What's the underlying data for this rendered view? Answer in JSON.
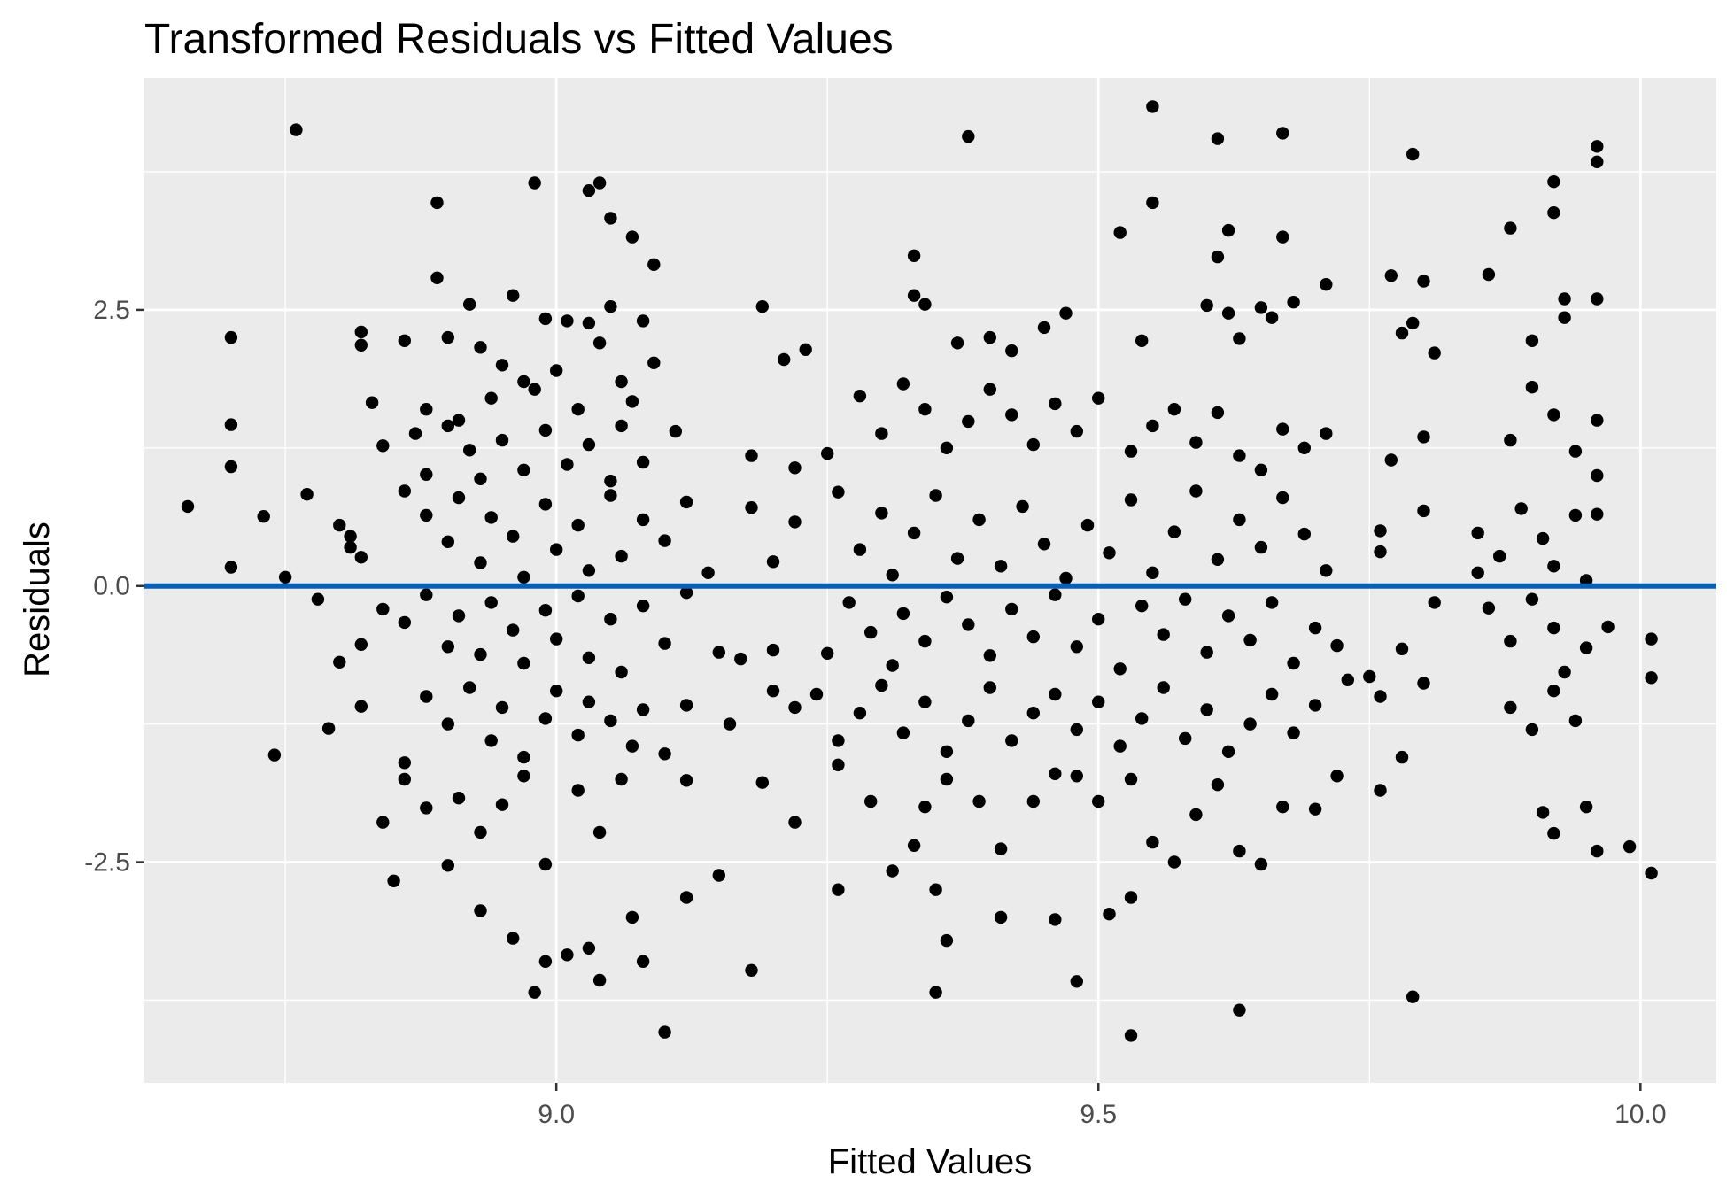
{
  "chart_data": {
    "type": "scatter",
    "title": "Transformed Residuals vs Fitted Values",
    "xlabel": "Fitted Values",
    "ylabel": "Residuals",
    "xlim": [
      8.62,
      10.07
    ],
    "ylim": [
      -4.5,
      4.6
    ],
    "x_ticks": [
      9.0,
      9.5,
      10.0
    ],
    "x_tick_labels": [
      "9.0",
      "9.5",
      "10.0"
    ],
    "y_ticks": [
      -2.5,
      0.0,
      2.5
    ],
    "y_tick_labels": [
      "-2.5",
      "0.0",
      "2.5"
    ],
    "grid": true,
    "legend": "none",
    "reference_line": {
      "y": 0.0,
      "color": "#0a5fb4"
    },
    "colors": {
      "panel_background": "#ebebeb",
      "grid": "#ffffff",
      "points": "#000000"
    },
    "points": [
      [
        8.76,
        4.13
      ],
      [
        8.89,
        3.47
      ],
      [
        8.98,
        3.65
      ],
      [
        9.03,
        3.58
      ],
      [
        9.04,
        3.65
      ],
      [
        9.05,
        3.33
      ],
      [
        9.07,
        3.16
      ],
      [
        9.09,
        2.91
      ],
      [
        9.38,
        4.07
      ],
      [
        9.55,
        4.34
      ],
      [
        9.55,
        3.47
      ],
      [
        9.61,
        4.05
      ],
      [
        9.67,
        4.1
      ],
      [
        9.52,
        3.2
      ],
      [
        9.62,
        3.22
      ],
      [
        9.67,
        3.16
      ],
      [
        9.79,
        3.91
      ],
      [
        9.96,
        3.98
      ],
      [
        9.96,
        3.84
      ],
      [
        9.92,
        3.66
      ],
      [
        9.92,
        3.38
      ],
      [
        9.88,
        3.24
      ],
      [
        9.33,
        2.99
      ],
      [
        9.61,
        2.98
      ],
      [
        8.7,
        2.25
      ],
      [
        8.7,
        1.46
      ],
      [
        8.7,
        1.08
      ],
      [
        8.7,
        0.17
      ],
      [
        8.66,
        0.72
      ],
      [
        8.73,
        0.63
      ],
      [
        8.75,
        0.08
      ],
      [
        8.77,
        0.83
      ],
      [
        8.8,
        0.55
      ],
      [
        8.81,
        0.45
      ],
      [
        8.81,
        0.35
      ],
      [
        8.82,
        0.26
      ],
      [
        8.82,
        2.3
      ],
      [
        8.82,
        2.18
      ],
      [
        8.83,
        1.66
      ],
      [
        8.84,
        1.27
      ],
      [
        8.86,
        2.22
      ],
      [
        8.87,
        1.38
      ],
      [
        8.88,
        1.01
      ],
      [
        8.9,
        2.25
      ],
      [
        8.91,
        1.5
      ],
      [
        8.92,
        2.55
      ],
      [
        8.89,
        2.79
      ],
      [
        8.93,
        2.16
      ],
      [
        8.94,
        1.7
      ],
      [
        8.95,
        2.0
      ],
      [
        8.96,
        2.63
      ],
      [
        8.97,
        1.85
      ],
      [
        8.98,
        1.78
      ],
      [
        8.99,
        2.42
      ],
      [
        9.0,
        1.95
      ],
      [
        9.01,
        2.4
      ],
      [
        9.02,
        1.6
      ],
      [
        9.03,
        2.38
      ],
      [
        9.04,
        2.2
      ],
      [
        9.05,
        2.53
      ],
      [
        9.06,
        1.85
      ],
      [
        9.07,
        1.67
      ],
      [
        9.08,
        2.4
      ],
      [
        9.09,
        2.02
      ],
      [
        9.19,
        2.53
      ],
      [
        9.21,
        2.05
      ],
      [
        9.23,
        2.14
      ],
      [
        9.33,
        2.63
      ],
      [
        9.34,
        2.55
      ],
      [
        9.37,
        2.2
      ],
      [
        9.4,
        2.25
      ],
      [
        9.42,
        2.13
      ],
      [
        9.45,
        2.34
      ],
      [
        9.47,
        2.47
      ],
      [
        9.54,
        2.22
      ],
      [
        9.6,
        2.54
      ],
      [
        9.62,
        2.47
      ],
      [
        9.63,
        2.24
      ],
      [
        9.65,
        2.52
      ],
      [
        9.66,
        2.43
      ],
      [
        9.68,
        2.57
      ],
      [
        9.71,
        2.73
      ],
      [
        9.77,
        2.81
      ],
      [
        9.78,
        2.29
      ],
      [
        9.79,
        2.38
      ],
      [
        9.8,
        2.76
      ],
      [
        9.81,
        2.11
      ],
      [
        9.86,
        2.82
      ],
      [
        9.9,
        2.22
      ],
      [
        9.93,
        2.6
      ],
      [
        9.96,
        2.6
      ],
      [
        9.93,
        2.43
      ],
      [
        8.88,
        1.6
      ],
      [
        8.9,
        1.45
      ],
      [
        8.92,
        1.23
      ],
      [
        8.93,
        0.97
      ],
      [
        8.95,
        1.32
      ],
      [
        8.97,
        1.05
      ],
      [
        8.99,
        1.41
      ],
      [
        9.01,
        1.1
      ],
      [
        9.03,
        1.28
      ],
      [
        9.05,
        0.95
      ],
      [
        9.06,
        1.45
      ],
      [
        9.08,
        1.12
      ],
      [
        9.11,
        1.4
      ],
      [
        9.18,
        1.18
      ],
      [
        9.22,
        1.07
      ],
      [
        9.25,
        1.2
      ],
      [
        9.28,
        1.72
      ],
      [
        9.3,
        1.38
      ],
      [
        9.32,
        1.83
      ],
      [
        9.34,
        1.6
      ],
      [
        9.36,
        1.25
      ],
      [
        9.38,
        1.49
      ],
      [
        9.4,
        1.78
      ],
      [
        9.42,
        1.55
      ],
      [
        9.44,
        1.28
      ],
      [
        9.46,
        1.65
      ],
      [
        9.48,
        1.4
      ],
      [
        9.5,
        1.7
      ],
      [
        9.53,
        1.22
      ],
      [
        9.55,
        1.45
      ],
      [
        9.57,
        1.6
      ],
      [
        9.59,
        1.3
      ],
      [
        9.61,
        1.57
      ],
      [
        9.63,
        1.18
      ],
      [
        9.65,
        1.05
      ],
      [
        9.67,
        1.42
      ],
      [
        9.69,
        1.25
      ],
      [
        9.71,
        1.38
      ],
      [
        9.77,
        1.14
      ],
      [
        9.8,
        1.35
      ],
      [
        9.88,
        1.32
      ],
      [
        9.9,
        1.8
      ],
      [
        9.92,
        1.55
      ],
      [
        9.94,
        1.22
      ],
      [
        9.96,
        1.5
      ],
      [
        9.96,
        1.0
      ],
      [
        8.86,
        0.86
      ],
      [
        8.88,
        0.64
      ],
      [
        8.9,
        0.4
      ],
      [
        8.91,
        0.8
      ],
      [
        8.93,
        0.21
      ],
      [
        8.94,
        0.62
      ],
      [
        8.96,
        0.45
      ],
      [
        8.97,
        0.08
      ],
      [
        8.99,
        0.74
      ],
      [
        9.0,
        0.33
      ],
      [
        9.02,
        0.55
      ],
      [
        9.03,
        0.14
      ],
      [
        9.05,
        0.82
      ],
      [
        9.06,
        0.27
      ],
      [
        9.08,
        0.6
      ],
      [
        9.1,
        0.41
      ],
      [
        9.12,
        0.76
      ],
      [
        9.14,
        0.12
      ],
      [
        9.18,
        0.71
      ],
      [
        9.2,
        0.22
      ],
      [
        9.22,
        0.58
      ],
      [
        9.26,
        0.85
      ],
      [
        9.28,
        0.33
      ],
      [
        9.3,
        0.66
      ],
      [
        9.31,
        0.1
      ],
      [
        9.33,
        0.48
      ],
      [
        9.35,
        0.82
      ],
      [
        9.37,
        0.25
      ],
      [
        9.39,
        0.6
      ],
      [
        9.41,
        0.18
      ],
      [
        9.43,
        0.72
      ],
      [
        9.45,
        0.38
      ],
      [
        9.47,
        0.07
      ],
      [
        9.49,
        0.55
      ],
      [
        9.51,
        0.3
      ],
      [
        9.53,
        0.78
      ],
      [
        9.55,
        0.12
      ],
      [
        9.57,
        0.49
      ],
      [
        9.59,
        0.86
      ],
      [
        9.61,
        0.24
      ],
      [
        9.63,
        0.6
      ],
      [
        9.65,
        0.35
      ],
      [
        9.67,
        0.8
      ],
      [
        9.69,
        0.47
      ],
      [
        9.71,
        0.14
      ],
      [
        9.76,
        0.5
      ],
      [
        9.76,
        0.31
      ],
      [
        9.8,
        0.68
      ],
      [
        9.85,
        0.48
      ],
      [
        9.85,
        0.12
      ],
      [
        9.87,
        0.27
      ],
      [
        9.89,
        0.7
      ],
      [
        9.91,
        0.43
      ],
      [
        9.92,
        0.18
      ],
      [
        9.94,
        0.64
      ],
      [
        9.95,
        0.05
      ],
      [
        9.96,
        0.65
      ],
      [
        8.78,
        -0.12
      ],
      [
        8.8,
        -0.69
      ],
      [
        8.82,
        -0.53
      ],
      [
        8.84,
        -0.21
      ],
      [
        8.86,
        -0.33
      ],
      [
        8.88,
        -0.08
      ],
      [
        8.9,
        -0.55
      ],
      [
        8.91,
        -0.27
      ],
      [
        8.93,
        -0.62
      ],
      [
        8.94,
        -0.15
      ],
      [
        8.96,
        -0.4
      ],
      [
        8.97,
        -0.7
      ],
      [
        8.99,
        -0.22
      ],
      [
        9.0,
        -0.48
      ],
      [
        9.02,
        -0.09
      ],
      [
        9.03,
        -0.65
      ],
      [
        9.05,
        -0.3
      ],
      [
        9.06,
        -0.78
      ],
      [
        9.08,
        -0.18
      ],
      [
        9.1,
        -0.52
      ],
      [
        9.12,
        -0.06
      ],
      [
        9.15,
        -0.6
      ],
      [
        9.17,
        -0.66
      ],
      [
        9.2,
        -0.58
      ],
      [
        9.25,
        -0.61
      ],
      [
        9.27,
        -0.15
      ],
      [
        9.29,
        -0.42
      ],
      [
        9.31,
        -0.72
      ],
      [
        9.32,
        -0.25
      ],
      [
        9.34,
        -0.5
      ],
      [
        9.36,
        -0.1
      ],
      [
        9.38,
        -0.35
      ],
      [
        9.4,
        -0.63
      ],
      [
        9.42,
        -0.21
      ],
      [
        9.44,
        -0.46
      ],
      [
        9.46,
        -0.08
      ],
      [
        9.48,
        -0.55
      ],
      [
        9.5,
        -0.3
      ],
      [
        9.52,
        -0.75
      ],
      [
        9.54,
        -0.18
      ],
      [
        9.56,
        -0.44
      ],
      [
        9.58,
        -0.12
      ],
      [
        9.6,
        -0.6
      ],
      [
        9.62,
        -0.27
      ],
      [
        9.64,
        -0.49
      ],
      [
        9.66,
        -0.15
      ],
      [
        9.68,
        -0.7
      ],
      [
        9.7,
        -0.38
      ],
      [
        9.72,
        -0.54
      ],
      [
        9.75,
        -0.82
      ],
      [
        9.78,
        -0.57
      ],
      [
        9.81,
        -0.15
      ],
      [
        9.86,
        -0.2
      ],
      [
        9.88,
        -0.5
      ],
      [
        9.9,
        -0.12
      ],
      [
        9.92,
        -0.38
      ],
      [
        9.93,
        -0.78
      ],
      [
        9.95,
        -0.56
      ],
      [
        9.97,
        -0.37
      ],
      [
        10.01,
        -0.48
      ],
      [
        8.74,
        -1.53
      ],
      [
        8.79,
        -1.29
      ],
      [
        8.82,
        -1.09
      ],
      [
        8.86,
        -1.6
      ],
      [
        8.88,
        -1.0
      ],
      [
        8.9,
        -1.25
      ],
      [
        8.92,
        -0.92
      ],
      [
        8.94,
        -1.4
      ],
      [
        8.95,
        -1.1
      ],
      [
        8.97,
        -1.55
      ],
      [
        8.99,
        -1.2
      ],
      [
        9.0,
        -0.95
      ],
      [
        9.02,
        -1.35
      ],
      [
        9.03,
        -1.05
      ],
      [
        9.05,
        -1.22
      ],
      [
        9.07,
        -1.45
      ],
      [
        9.08,
        -1.12
      ],
      [
        9.1,
        -1.52
      ],
      [
        9.12,
        -1.08
      ],
      [
        9.16,
        -1.25
      ],
      [
        9.2,
        -0.95
      ],
      [
        9.22,
        -1.1
      ],
      [
        9.24,
        -0.98
      ],
      [
        9.26,
        -1.4
      ],
      [
        9.28,
        -1.15
      ],
      [
        9.3,
        -0.9
      ],
      [
        9.32,
        -1.33
      ],
      [
        9.34,
        -1.05
      ],
      [
        9.36,
        -1.5
      ],
      [
        9.38,
        -1.22
      ],
      [
        9.4,
        -0.92
      ],
      [
        9.42,
        -1.4
      ],
      [
        9.44,
        -1.15
      ],
      [
        9.46,
        -0.98
      ],
      [
        9.48,
        -1.3
      ],
      [
        9.5,
        -1.05
      ],
      [
        9.52,
        -1.45
      ],
      [
        9.54,
        -1.2
      ],
      [
        9.56,
        -0.92
      ],
      [
        9.58,
        -1.38
      ],
      [
        9.6,
        -1.12
      ],
      [
        9.62,
        -1.5
      ],
      [
        9.64,
        -1.25
      ],
      [
        9.66,
        -0.98
      ],
      [
        9.68,
        -1.33
      ],
      [
        9.7,
        -1.08
      ],
      [
        9.73,
        -0.85
      ],
      [
        9.76,
        -1.0
      ],
      [
        9.78,
        -1.55
      ],
      [
        9.8,
        -0.88
      ],
      [
        9.88,
        -1.1
      ],
      [
        9.9,
        -1.3
      ],
      [
        9.92,
        -0.95
      ],
      [
        9.94,
        -1.22
      ],
      [
        10.01,
        -0.83
      ],
      [
        8.84,
        -2.14
      ],
      [
        8.86,
        -1.75
      ],
      [
        8.88,
        -2.01
      ],
      [
        8.91,
        -1.92
      ],
      [
        8.93,
        -2.23
      ],
      [
        8.95,
        -1.98
      ],
      [
        8.97,
        -1.72
      ],
      [
        8.99,
        -2.52
      ],
      [
        9.02,
        -1.85
      ],
      [
        9.04,
        -2.23
      ],
      [
        9.06,
        -1.75
      ],
      [
        9.12,
        -1.76
      ],
      [
        9.19,
        -1.78
      ],
      [
        9.22,
        -2.14
      ],
      [
        9.26,
        -1.62
      ],
      [
        9.29,
        -1.95
      ],
      [
        9.31,
        -2.58
      ],
      [
        9.33,
        -2.35
      ],
      [
        9.34,
        -2.0
      ],
      [
        9.36,
        -1.75
      ],
      [
        9.39,
        -1.95
      ],
      [
        9.41,
        -2.38
      ],
      [
        9.44,
        -1.95
      ],
      [
        9.46,
        -1.7
      ],
      [
        9.48,
        -1.72
      ],
      [
        9.5,
        -1.95
      ],
      [
        9.53,
        -1.75
      ],
      [
        9.55,
        -2.32
      ],
      [
        9.57,
        -2.5
      ],
      [
        9.59,
        -2.07
      ],
      [
        9.61,
        -1.8
      ],
      [
        9.63,
        -2.4
      ],
      [
        9.65,
        -2.52
      ],
      [
        9.67,
        -2.0
      ],
      [
        9.7,
        -2.02
      ],
      [
        9.72,
        -1.72
      ],
      [
        9.76,
        -1.85
      ],
      [
        9.91,
        -2.05
      ],
      [
        9.92,
        -2.24
      ],
      [
        9.95,
        -2.0
      ],
      [
        9.96,
        -2.4
      ],
      [
        9.99,
        -2.36
      ],
      [
        10.01,
        -2.6
      ],
      [
        8.85,
        -2.67
      ],
      [
        8.9,
        -2.53
      ],
      [
        8.93,
        -2.94
      ],
      [
        8.96,
        -3.19
      ],
      [
        8.98,
        -3.68
      ],
      [
        8.99,
        -3.4
      ],
      [
        9.01,
        -3.34
      ],
      [
        9.03,
        -3.28
      ],
      [
        9.04,
        -3.57
      ],
      [
        9.07,
        -3.0
      ],
      [
        9.08,
        -3.4
      ],
      [
        9.1,
        -4.04
      ],
      [
        9.12,
        -2.82
      ],
      [
        9.15,
        -2.62
      ],
      [
        9.18,
        -3.48
      ],
      [
        9.26,
        -2.75
      ],
      [
        9.35,
        -2.75
      ],
      [
        9.35,
        -3.68
      ],
      [
        9.36,
        -3.21
      ],
      [
        9.41,
        -3.0
      ],
      [
        9.46,
        -3.02
      ],
      [
        9.48,
        -3.58
      ],
      [
        9.51,
        -2.97
      ],
      [
        9.53,
        -4.07
      ],
      [
        9.53,
        -2.82
      ],
      [
        9.63,
        -3.84
      ],
      [
        9.79,
        -3.72
      ]
    ]
  }
}
